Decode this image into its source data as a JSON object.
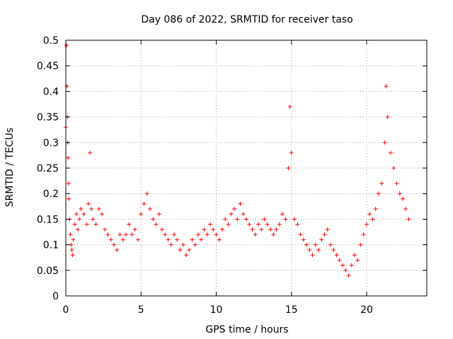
{
  "chart_data": {
    "type": "scatter",
    "title": "Day 086 of 2022, SRMTID for receiver taso",
    "xlabel": "GPS time / hours",
    "ylabel": "SRMTID / TECUs",
    "xlim": [
      0,
      24
    ],
    "ylim": [
      0,
      0.5
    ],
    "xticks": [
      0,
      5,
      10,
      15,
      20
    ],
    "xtick_labels": [
      "0",
      "5",
      "10",
      "15",
      "20"
    ],
    "yticks": [
      0,
      0.05,
      0.1,
      0.15,
      0.2,
      0.25,
      0.3,
      0.35,
      0.4,
      0.45,
      0.5
    ],
    "ytick_labels": [
      "0",
      "0.05",
      "0.1",
      "0.15",
      "0.2",
      "0.25",
      "0.3",
      "0.35",
      "0.4",
      "0.45",
      "0.5"
    ],
    "grid": true,
    "marker": "plus",
    "color": "#ff0000",
    "series": [
      {
        "x": [
          0.0,
          0.05,
          0.08,
          0.1,
          0.12,
          0.15,
          0.18,
          0.2,
          0.25,
          0.3,
          0.35,
          0.4,
          0.45,
          0.5,
          0.6,
          0.7,
          0.8,
          0.9,
          1.0,
          1.2,
          1.4,
          1.5,
          1.6,
          1.7,
          1.8,
          2.0,
          2.2,
          2.4,
          2.6,
          2.8,
          3.0,
          3.2,
          3.4,
          3.6,
          3.8,
          4.0,
          4.2,
          4.4,
          4.6,
          4.8,
          5.0,
          5.2,
          5.4,
          5.6,
          5.8,
          6.0,
          6.2,
          6.4,
          6.6,
          6.8,
          7.0,
          7.2,
          7.4,
          7.6,
          7.8,
          8.0,
          8.2,
          8.4,
          8.6,
          8.8,
          9.0,
          9.2,
          9.4,
          9.6,
          9.8,
          10.0,
          10.2,
          10.4,
          10.6,
          10.8,
          11.0,
          11.2,
          11.4,
          11.6,
          11.8,
          12.0,
          12.2,
          12.4,
          12.6,
          12.8,
          13.0,
          13.2,
          13.4,
          13.6,
          13.8,
          14.0,
          14.2,
          14.4,
          14.6,
          14.8,
          14.9,
          15.0,
          15.2,
          15.4,
          15.6,
          15.8,
          16.0,
          16.2,
          16.4,
          16.6,
          16.8,
          17.0,
          17.2,
          17.4,
          17.6,
          17.8,
          18.0,
          18.2,
          18.4,
          18.6,
          18.8,
          19.0,
          19.2,
          19.4,
          19.6,
          19.8,
          20.0,
          20.2,
          20.4,
          20.6,
          20.8,
          21.0,
          21.2,
          21.3,
          21.4,
          21.6,
          21.8,
          22.0,
          22.2,
          22.4,
          22.6,
          22.8
        ],
        "y": [
          0.33,
          0.49,
          0.41,
          0.35,
          0.3,
          0.27,
          0.22,
          0.19,
          0.15,
          0.12,
          0.1,
          0.09,
          0.08,
          0.11,
          0.14,
          0.16,
          0.13,
          0.15,
          0.17,
          0.16,
          0.14,
          0.18,
          0.28,
          0.17,
          0.15,
          0.14,
          0.17,
          0.16,
          0.13,
          0.12,
          0.11,
          0.1,
          0.09,
          0.12,
          0.11,
          0.12,
          0.14,
          0.12,
          0.13,
          0.11,
          0.16,
          0.18,
          0.2,
          0.17,
          0.15,
          0.14,
          0.16,
          0.13,
          0.12,
          0.11,
          0.1,
          0.12,
          0.11,
          0.09,
          0.1,
          0.08,
          0.09,
          0.11,
          0.1,
          0.12,
          0.11,
          0.13,
          0.12,
          0.14,
          0.13,
          0.12,
          0.11,
          0.13,
          0.15,
          0.14,
          0.16,
          0.17,
          0.15,
          0.18,
          0.16,
          0.15,
          0.14,
          0.13,
          0.12,
          0.14,
          0.13,
          0.15,
          0.14,
          0.13,
          0.12,
          0.13,
          0.14,
          0.16,
          0.15,
          0.25,
          0.37,
          0.28,
          0.15,
          0.14,
          0.12,
          0.11,
          0.1,
          0.09,
          0.08,
          0.1,
          0.09,
          0.11,
          0.12,
          0.13,
          0.1,
          0.09,
          0.08,
          0.07,
          0.06,
          0.05,
          0.04,
          0.06,
          0.08,
          0.07,
          0.1,
          0.12,
          0.14,
          0.16,
          0.15,
          0.17,
          0.2,
          0.22,
          0.3,
          0.41,
          0.35,
          0.28,
          0.25,
          0.22,
          0.2,
          0.19,
          0.17,
          0.15
        ]
      }
    ]
  }
}
